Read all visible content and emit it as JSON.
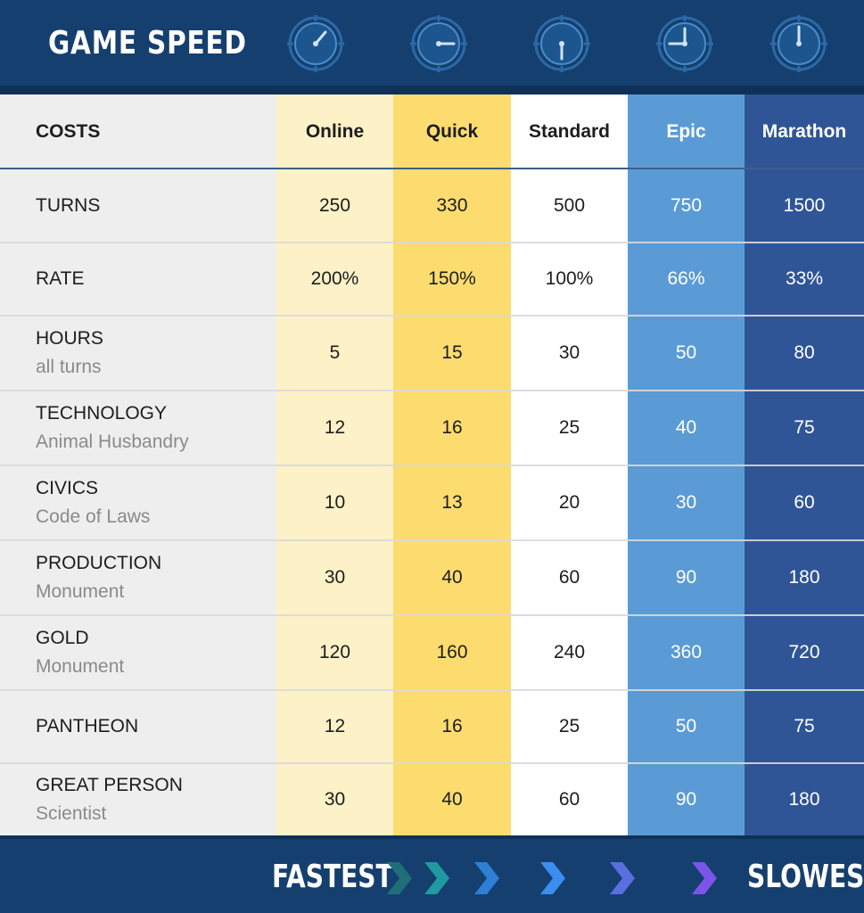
{
  "header": {
    "title": "GAME SPEED",
    "clock_icons": [
      "clock-fast-icon",
      "clock-quarter-icon",
      "clock-half-icon",
      "clock-three-quarter-icon",
      "clock-full-icon"
    ]
  },
  "table": {
    "label_header": "COSTS",
    "columns": [
      {
        "name": "Online",
        "color": "#fdf1c8",
        "text_color": "#1d1d1d"
      },
      {
        "name": "Quick",
        "color": "#fddc6f",
        "text_color": "#1d1d1d"
      },
      {
        "name": "Standard",
        "color": "#ffffff",
        "text_color": "#1d1d1d"
      },
      {
        "name": "Epic",
        "color": "#5b9bd5",
        "text_color": "#ffffff"
      },
      {
        "name": "Marathon",
        "color": "#2f5597",
        "text_color": "#ffffff"
      }
    ],
    "rows": [
      {
        "label": "TURNS",
        "sub": "",
        "values": [
          "250",
          "330",
          "500",
          "750",
          "1500"
        ]
      },
      {
        "label": "RATE",
        "sub": "",
        "values": [
          "200%",
          "150%",
          "100%",
          "66%",
          "33%"
        ]
      },
      {
        "label": "HOURS",
        "sub": "all turns",
        "values": [
          "5",
          "15",
          "30",
          "50",
          "80"
        ]
      },
      {
        "label": "TECHNOLOGY",
        "sub": "Animal Husbandry",
        "values": [
          "12",
          "16",
          "25",
          "40",
          "75"
        ]
      },
      {
        "label": "CIVICS",
        "sub": "Code of Laws",
        "values": [
          "10",
          "13",
          "20",
          "30",
          "60"
        ]
      },
      {
        "label": "PRODUCTION",
        "sub": "Monument",
        "values": [
          "30",
          "40",
          "60",
          "90",
          "180"
        ]
      },
      {
        "label": "GOLD",
        "sub": "Monument",
        "values": [
          "120",
          "160",
          "240",
          "360",
          "720"
        ]
      },
      {
        "label": "PANTHEON",
        "sub": "",
        "values": [
          "12",
          "16",
          "25",
          "50",
          "75"
        ]
      },
      {
        "label": "GREAT PERSON",
        "sub": "Scientist",
        "values": [
          "30",
          "40",
          "60",
          "90",
          "180"
        ]
      }
    ]
  },
  "footer": {
    "fastest": "FASTEST",
    "slowest": "SLOWEST",
    "chevron_colors": [
      "#1f6f7a",
      "#1f9aa0",
      "#2e7fd6",
      "#3b8ef0",
      "#5b6ee0",
      "#7b55e8"
    ]
  },
  "colors": {
    "header_bg": "#153f6e",
    "label_col_bg": "#eeeeee"
  }
}
